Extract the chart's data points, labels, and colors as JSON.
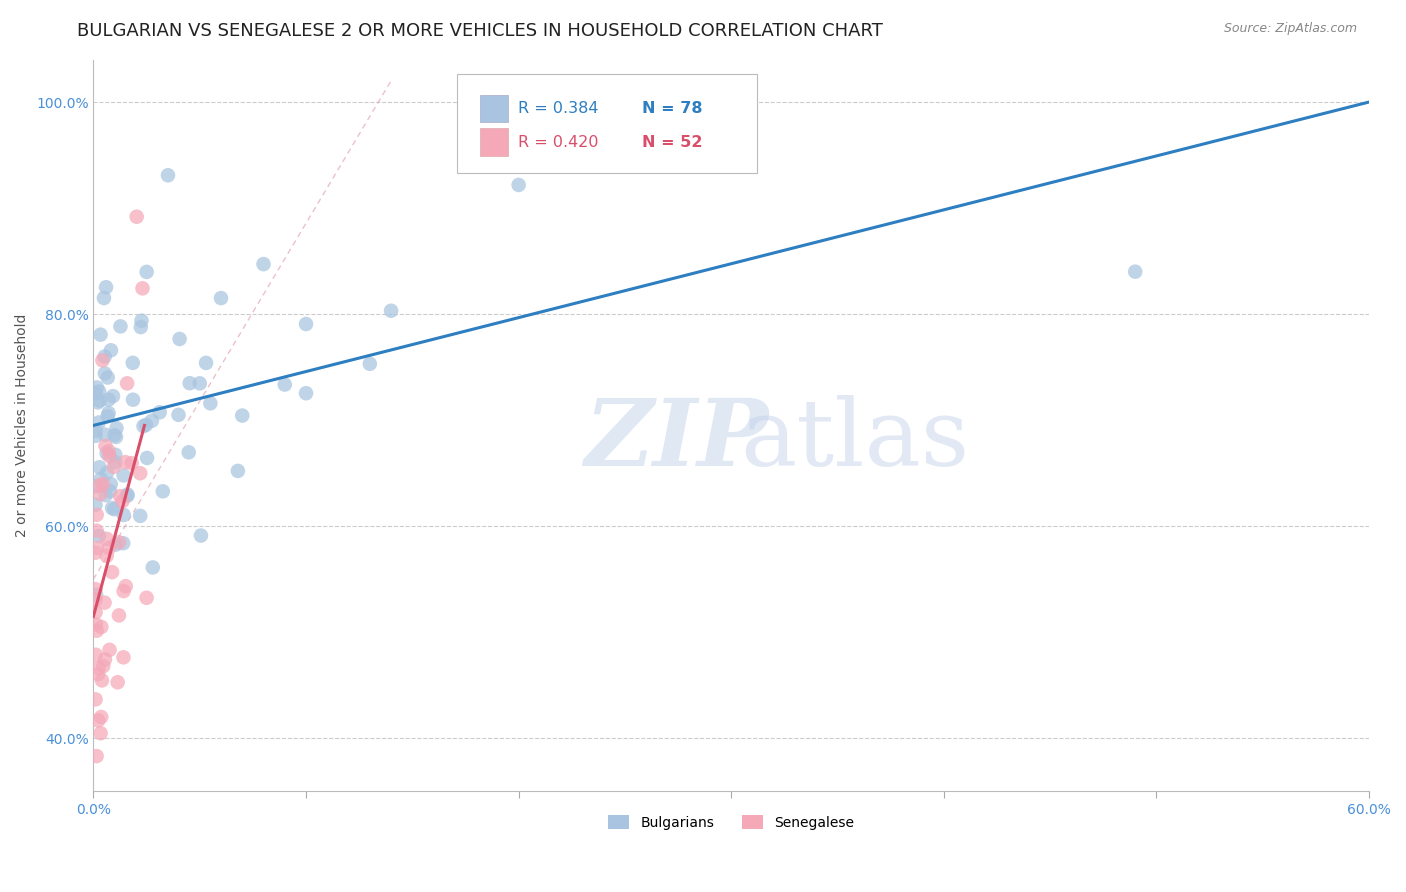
{
  "title": "BULGARIAN VS SENEGALESE 2 OR MORE VEHICLES IN HOUSEHOLD CORRELATION CHART",
  "source": "Source: ZipAtlas.com",
  "xlabel_bulgarians": "Bulgarians",
  "xlabel_senegalese": "Senegalese",
  "ylabel": "2 or more Vehicles in Household",
  "xlim": [
    0.0,
    0.6
  ],
  "ylim": [
    0.35,
    1.04
  ],
  "ytick_vals": [
    0.4,
    0.6,
    0.8,
    1.0
  ],
  "ytick_labels": [
    "40.0%",
    "60.0%",
    "80.0%",
    "100.0%"
  ],
  "xtick_vals": [
    0.0,
    0.1,
    0.2,
    0.3,
    0.4,
    0.5,
    0.6
  ],
  "xtick_labels": [
    "0.0%",
    "",
    "",
    "",
    "",
    "",
    "60.0%"
  ],
  "bulgarian_R": 0.384,
  "bulgarian_N": 78,
  "senegalese_R": 0.42,
  "senegalese_N": 52,
  "bulgarian_color": "#a8c4e0",
  "senegalese_color": "#f4a8b8",
  "line_bulgarian_color": "#2d7fc1",
  "line_senegalese_color": "#d94f6a",
  "bg_color": "#ffffff",
  "grid_color": "#cccccc",
  "title_fontsize": 13,
  "label_fontsize": 10,
  "tick_color": "#4a90d9",
  "tick_fontsize": 10,
  "bg_line_x0": 0.0,
  "bg_line_y0": 0.695,
  "bg_line_x1": 0.6,
  "bg_line_y1": 1.0,
  "sg_line_x0": 0.0,
  "sg_line_y0": 0.515,
  "sg_line_x1": 0.024,
  "sg_line_y1": 0.695
}
